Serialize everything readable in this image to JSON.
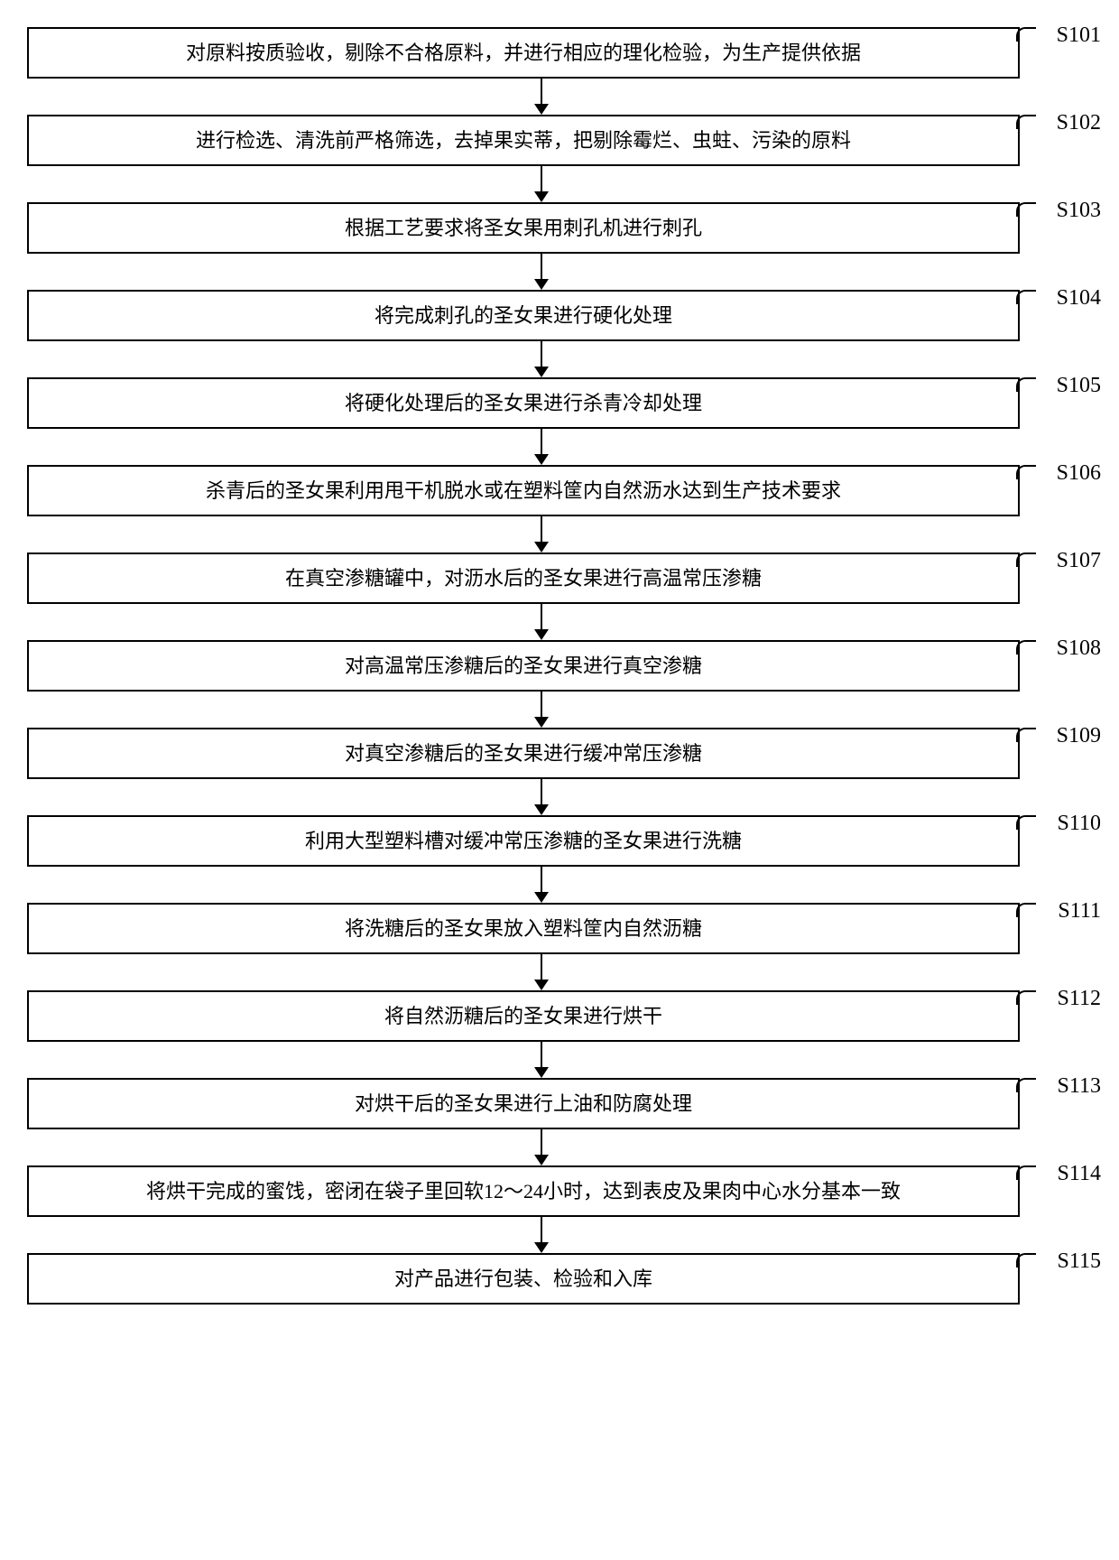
{
  "flowchart": {
    "type": "flowchart",
    "direction": "top-to-bottom",
    "box_border_color": "#000000",
    "box_border_width": 2,
    "box_background": "#ffffff",
    "arrow_color": "#000000",
    "font_family": "SimSun",
    "text_fontsize": 22,
    "label_fontsize": 24,
    "steps": [
      {
        "id": "S101",
        "text": "对原料按质验收，剔除不合格原料，并进行相应的理化检验，为生产提供依据"
      },
      {
        "id": "S102",
        "text": "进行检选、清洗前严格筛选，去掉果实蒂，把剔除霉烂、虫蛀、污染的原料"
      },
      {
        "id": "S103",
        "text": "根据工艺要求将圣女果用刺孔机进行刺孔"
      },
      {
        "id": "S104",
        "text": "将完成刺孔的圣女果进行硬化处理"
      },
      {
        "id": "S105",
        "text": "将硬化处理后的圣女果进行杀青冷却处理"
      },
      {
        "id": "S106",
        "text": "杀青后的圣女果利用甩干机脱水或在塑料筐内自然沥水达到生产技术要求"
      },
      {
        "id": "S107",
        "text": "在真空渗糖罐中，对沥水后的圣女果进行高温常压渗糖"
      },
      {
        "id": "S108",
        "text": "对高温常压渗糖后的圣女果进行真空渗糖"
      },
      {
        "id": "S109",
        "text": "对真空渗糖后的圣女果进行缓冲常压渗糖"
      },
      {
        "id": "S110",
        "text": "利用大型塑料槽对缓冲常压渗糖的圣女果进行洗糖"
      },
      {
        "id": "S111",
        "text": "将洗糖后的圣女果放入塑料筐内自然沥糖"
      },
      {
        "id": "S112",
        "text": "将自然沥糖后的圣女果进行烘干"
      },
      {
        "id": "S113",
        "text": "对烘干后的圣女果进行上油和防腐处理"
      },
      {
        "id": "S114",
        "text": "将烘干完成的蜜饯，密闭在袋子里回软12～24小时，达到表皮及果肉中心水分基本一致"
      },
      {
        "id": "S115",
        "text": "对产品进行包装、检验和入库"
      }
    ]
  }
}
